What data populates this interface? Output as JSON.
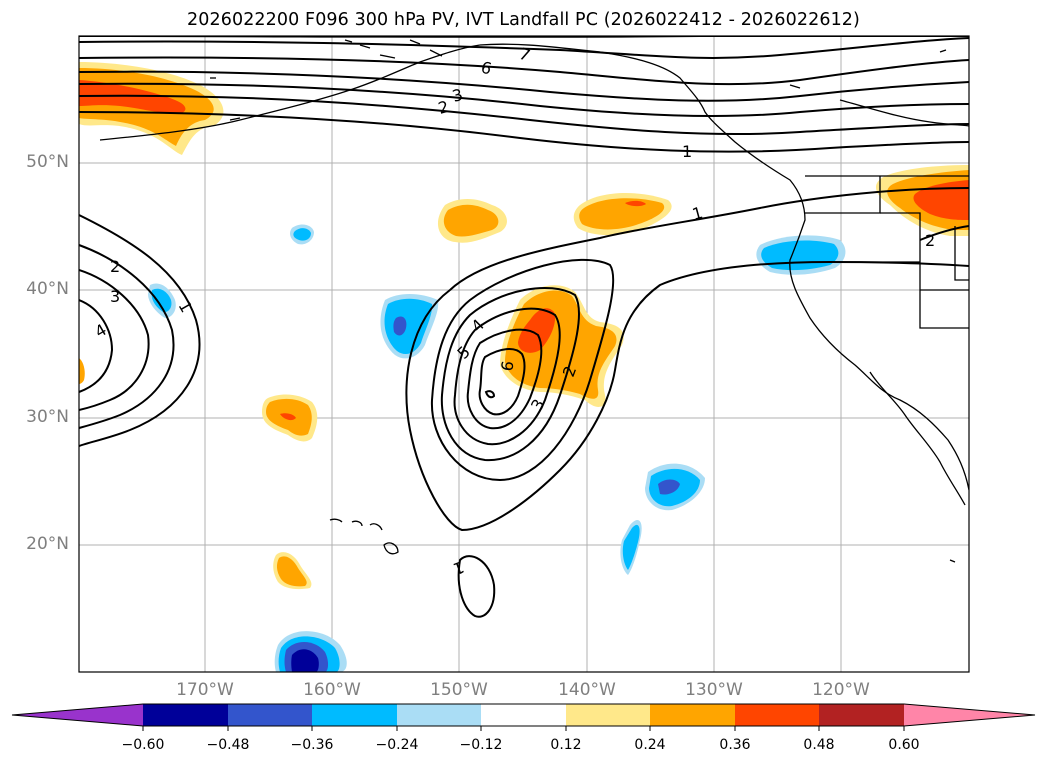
{
  "title": "2026022200 F096 300 hPa PV, IVT Landfall PC (2026022412 - 2026022612)",
  "latitude_labels": [
    "50°N",
    "40°N",
    "30°N",
    "20°N"
  ],
  "longitude_labels": [
    "170°W",
    "160°W",
    "150°W",
    "140°W",
    "130°W",
    "120°W"
  ],
  "contour_labels": [
    "7",
    "6",
    "3",
    "2",
    "1",
    "1",
    "2",
    "3",
    "4",
    "1",
    "4",
    "5",
    "6",
    "3",
    "2",
    "1",
    "2"
  ],
  "colorbar": {
    "tick_labels": [
      "−0.60",
      "−0.48",
      "−0.36",
      "−0.24",
      "−0.12",
      "0.12",
      "0.24",
      "0.36",
      "0.48",
      "0.60"
    ],
    "colors": [
      "#9933cc",
      "#000099",
      "#3355cc",
      "#00bbff",
      "#aaddf5",
      "#ffffff",
      "#ffe88a",
      "#ffa500",
      "#ff4500",
      "#b22222",
      "#ff85a8"
    ]
  },
  "colors": {
    "contour": "#000000",
    "coastline": "#000000",
    "grid": "#b0b0b0",
    "axis_label": "#7f7f7f"
  }
}
